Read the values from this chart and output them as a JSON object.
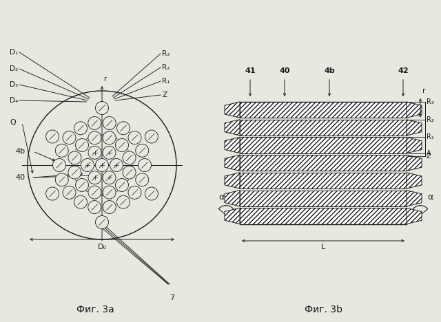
{
  "fig_width": 6.4,
  "fig_height": 4.68,
  "bg_color": "#e8e8e0",
  "line_color": "#1a1a1a",
  "fig3a_label": "Фиг. 3a",
  "fig3b_label": "Фиг. 3b",
  "labels_left": [
    "D₁",
    "D₂",
    "D₃",
    "D₄"
  ],
  "labels_right_top": [
    "R₃",
    "R₂",
    "R₁",
    "Z"
  ],
  "labels_3b_top": [
    "41",
    "40",
    "4b",
    "42"
  ],
  "labels_3b_right": [
    "R₃",
    "R₂",
    "R₁",
    "A",
    "Z"
  ],
  "circle_label_4b": "4b",
  "circle_label_40": "40",
  "circle_label_Q": "Q",
  "label_r": "r",
  "label_D0": "D₀",
  "label_L": "L",
  "label_7": "7",
  "label_alpha": "α"
}
